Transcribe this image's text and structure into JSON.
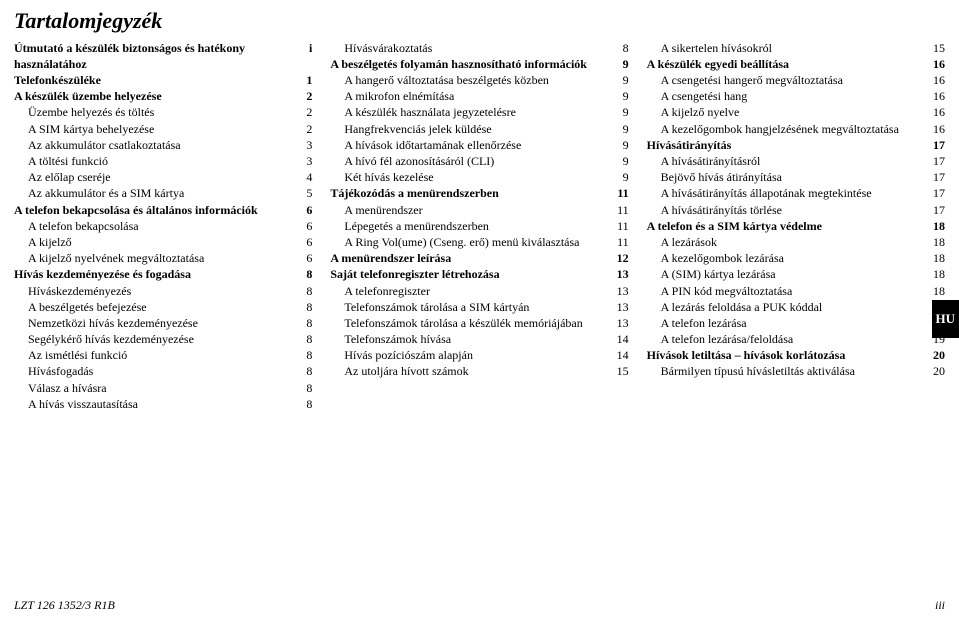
{
  "title": "Tartalomjegyzék",
  "footer_left": "LZT 126 1352/3 R1B",
  "footer_right": "iii",
  "side_tab": "HU",
  "col1": [
    {
      "label": "Útmutató a készülék biztonságos és hatékony használatához",
      "num": "i",
      "bold": true,
      "indent": 0
    },
    {
      "label": "Telefonkészüléke",
      "num": "1",
      "bold": true,
      "indent": 0
    },
    {
      "label": "A készülék üzembe helyezése",
      "num": "2",
      "bold": true,
      "indent": 0
    },
    {
      "label": "Üzembe helyezés és töltés",
      "num": "2",
      "bold": false,
      "indent": 1
    },
    {
      "label": "A SIM kártya behelyezése",
      "num": "2",
      "bold": false,
      "indent": 1
    },
    {
      "label": "Az akkumulátor csatlakoztatása",
      "num": "3",
      "bold": false,
      "indent": 1
    },
    {
      "label": "A töltési funkció",
      "num": "3",
      "bold": false,
      "indent": 1
    },
    {
      "label": "Az előlap cseréje",
      "num": "4",
      "bold": false,
      "indent": 1
    },
    {
      "label": "Az akkumulátor és a SIM kártya",
      "num": "5",
      "bold": false,
      "indent": 1
    },
    {
      "label": "A telefon bekapcsolása és általános információk",
      "num": "6",
      "bold": true,
      "indent": 0
    },
    {
      "label": "A telefon bekapcsolása",
      "num": "6",
      "bold": false,
      "indent": 1
    },
    {
      "label": "A kijelző",
      "num": "6",
      "bold": false,
      "indent": 1
    },
    {
      "label": "A kijelző nyelvének megváltoztatása",
      "num": "6",
      "bold": false,
      "indent": 1
    },
    {
      "label": "Hívás kezdeményezése és fogadása",
      "num": "8",
      "bold": true,
      "indent": 0
    },
    {
      "label": "Híváskezdeményezés",
      "num": "8",
      "bold": false,
      "indent": 1
    },
    {
      "label": "A beszélgetés befejezése",
      "num": "8",
      "bold": false,
      "indent": 1
    },
    {
      "label": "Nemzetközi hívás kezdeményezése",
      "num": "8",
      "bold": false,
      "indent": 1
    },
    {
      "label": "Segélykérő hívás kezdeményezése",
      "num": "8",
      "bold": false,
      "indent": 1
    },
    {
      "label": "Az ismétlési funkció",
      "num": "8",
      "bold": false,
      "indent": 1
    },
    {
      "label": "Hívásfogadás",
      "num": "8",
      "bold": false,
      "indent": 1
    },
    {
      "label": "Válasz a hívásra",
      "num": "8",
      "bold": false,
      "indent": 1
    },
    {
      "label": "A hívás visszautasítása",
      "num": "8",
      "bold": false,
      "indent": 1
    }
  ],
  "col2": [
    {
      "label": "Hívásvárakoztatás",
      "num": "8",
      "bold": false,
      "indent": 1
    },
    {
      "label": "A beszélgetés folyamán hasznosítható információk",
      "num": "9",
      "bold": true,
      "indent": 0
    },
    {
      "label": "A hangerő változtatása beszélgetés közben",
      "num": "9",
      "bold": false,
      "indent": 1
    },
    {
      "label": "A mikrofon elnémítása",
      "num": "9",
      "bold": false,
      "indent": 1
    },
    {
      "label": "A készülék használata jegyzetelésre",
      "num": "9",
      "bold": false,
      "indent": 1
    },
    {
      "label": "Hangfrekvenciás jelek küldése",
      "num": "9",
      "bold": false,
      "indent": 1
    },
    {
      "label": "A hívások időtartamának ellenőrzése",
      "num": "9",
      "bold": false,
      "indent": 1
    },
    {
      "label": "A hívó fél azonosításáról (CLI)",
      "num": "9",
      "bold": false,
      "indent": 1
    },
    {
      "label": "Két hívás kezelése",
      "num": "9",
      "bold": false,
      "indent": 1
    },
    {
      "label": "Tájékozódás a menürendszerben",
      "num": "11",
      "bold": true,
      "indent": 0
    },
    {
      "label": "A menürendszer",
      "num": "11",
      "bold": false,
      "indent": 1
    },
    {
      "label": "Lépegetés a menürendszerben",
      "num": "11",
      "bold": false,
      "indent": 1
    },
    {
      "label": "A Ring Vol(ume) (Cseng. erő) menü kiválasztása",
      "num": "11",
      "bold": false,
      "indent": 1
    },
    {
      "label": "A menürendszer leírása",
      "num": "12",
      "bold": true,
      "indent": 0
    },
    {
      "label": "Saját telefonregiszter létrehozása",
      "num": "13",
      "bold": true,
      "indent": 0
    },
    {
      "label": "A telefonregiszter",
      "num": "13",
      "bold": false,
      "indent": 1
    },
    {
      "label": "Telefonszámok tárolása a SIM kártyán",
      "num": "13",
      "bold": false,
      "indent": 1
    },
    {
      "label": "Telefonszámok tárolása a készülék memóriájában",
      "num": "13",
      "bold": false,
      "indent": 1
    },
    {
      "label": "Telefonszámok hívása",
      "num": "14",
      "bold": false,
      "indent": 1
    },
    {
      "label": "Hívás pozíciószám alapján",
      "num": "14",
      "bold": false,
      "indent": 1
    },
    {
      "label": "Az utoljára hívott számok",
      "num": "15",
      "bold": false,
      "indent": 1
    }
  ],
  "col3": [
    {
      "label": "A sikertelen hívásokról",
      "num": "15",
      "bold": false,
      "indent": 1
    },
    {
      "label": "A készülék egyedi beállítása",
      "num": "16",
      "bold": true,
      "indent": 0
    },
    {
      "label": "A csengetési hangerő megváltoztatása",
      "num": "16",
      "bold": false,
      "indent": 1
    },
    {
      "label": "A csengetési hang",
      "num": "16",
      "bold": false,
      "indent": 1
    },
    {
      "label": "A kijelző nyelve",
      "num": "16",
      "bold": false,
      "indent": 1
    },
    {
      "label": "A kezelőgombok hangjelzésének megváltoztatása",
      "num": "16",
      "bold": false,
      "indent": 1
    },
    {
      "label": "Hívásátirányítás",
      "num": "17",
      "bold": true,
      "indent": 0
    },
    {
      "label": "A hívásátirányításról",
      "num": "17",
      "bold": false,
      "indent": 1
    },
    {
      "label": "Bejövő hívás átirányítása",
      "num": "17",
      "bold": false,
      "indent": 1
    },
    {
      "label": "A hívásátirányítás állapotának megtekintése",
      "num": "17",
      "bold": false,
      "indent": 1
    },
    {
      "label": "A hívásátirányítás törlése",
      "num": "17",
      "bold": false,
      "indent": 1
    },
    {
      "label": "A telefon és a SIM kártya védelme",
      "num": "18",
      "bold": true,
      "indent": 0
    },
    {
      "label": "A lezárások",
      "num": "18",
      "bold": false,
      "indent": 1
    },
    {
      "label": "A kezelőgombok lezárása",
      "num": "18",
      "bold": false,
      "indent": 1
    },
    {
      "label": "A (SIM) kártya lezárása",
      "num": "18",
      "bold": false,
      "indent": 1
    },
    {
      "label": "A PIN kód megváltoztatása",
      "num": "18",
      "bold": false,
      "indent": 1
    },
    {
      "label": "A lezárás feloldása a PUK kóddal",
      "num": "18",
      "bold": false,
      "indent": 1
    },
    {
      "label": "A telefon lezárása",
      "num": "19",
      "bold": false,
      "indent": 1
    },
    {
      "label": "A telefon lezárása/feloldása",
      "num": "19",
      "bold": false,
      "indent": 1
    },
    {
      "label": "Hívások letiltása – hívások korlátozása",
      "num": "20",
      "bold": true,
      "indent": 0
    },
    {
      "label": "Bármilyen típusú hívásletiltás aktiválása",
      "num": "20",
      "bold": false,
      "indent": 1
    }
  ]
}
